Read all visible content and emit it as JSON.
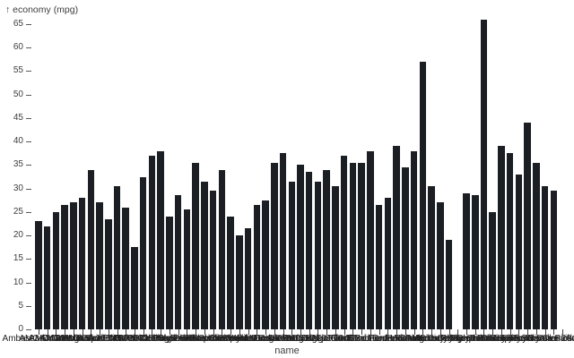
{
  "chart": {
    "y_axis_title": "↑ economy (mpg)",
    "x_axis_title": "name"
  },
  "chart_data": {
    "type": "bar",
    "title": "",
    "ylabel": "economy (mpg)",
    "xlabel": "name",
    "ylim": [
      0,
      66
    ],
    "y_ticks": [
      0,
      5,
      10,
      15,
      20,
      25,
      30,
      35,
      40,
      45,
      50,
      55,
      60,
      65
    ],
    "grid": false,
    "legend": false,
    "bar_color": "#1b1e23",
    "axis_text_color": "#3d3d3d",
    "categories": [
      "AMC Ambassador Brougham",
      "AMC Concord",
      "AMC Gremlin",
      "AMC Hornet",
      "AMC Matador",
      "AMC Pacer",
      "AMC Spirit DL",
      "Audi 100 LS",
      "Audi 4000",
      "Audi 5000",
      "BMW 2002",
      "BMW 320i",
      "Buick Century",
      "Buick Regal",
      "Buick Skylark",
      "Cadillac Seville",
      "Chevrolet Camaro",
      "Chevrolet Caprice",
      "Chevrolet Chevette",
      "Chevrolet Citation",
      "Chevrolet Impala",
      "Chevrolet Malibu",
      "Chevrolet Monte Carlo",
      "Chevrolet Nova",
      "Chevrolet Vega",
      "Chrysler Cordoba",
      "Datsun 200SX",
      "Datsun 210",
      "Datsun 280ZX",
      "Datsun 510",
      "Datsun B210",
      "Dodge Aspen",
      "Dodge Colt",
      "Dodge Omni",
      "Fiat 124B",
      "Fiat 128",
      "Fiat Strada",
      "Ford Fairmont",
      "Ford Fiesta",
      "Ford Granada",
      "Ford LTD",
      "Ford Mustang",
      "Ford Pinto",
      "Honda Accord",
      "Honda Civic",
      "Mazda GLC",
      "Mercury Capri",
      "Mercury Marquis",
      "Oldsmobile Cutlass",
      "Peugeot 504",
      "Plymouth Champ",
      "Plymouth Duster",
      "Plymouth Horizon",
      "Pontiac Firebird",
      "Pontiac Phoenix",
      "Toyota Celica",
      "Toyota Corolla",
      "Toyota Corona",
      "Toyota Cressida",
      "Toyota Pickup",
      "Volvo 264GL"
    ],
    "values": [
      23,
      22,
      25,
      26.5,
      27,
      28,
      34,
      27,
      23.5,
      30.5,
      26,
      17.5,
      32.5,
      37,
      38,
      24,
      28.5,
      25.5,
      35.5,
      31.5,
      29.5,
      34,
      24,
      20,
      21.5,
      26.5,
      27.5,
      35.5,
      37.5,
      31.5,
      35,
      33.5,
      31.5,
      34,
      30.5,
      37,
      35.5,
      35.5,
      38,
      26.5,
      28,
      39,
      34.5,
      38,
      57,
      30.5,
      27,
      19,
      0,
      29,
      28.5,
      66,
      25,
      39,
      37.5,
      33,
      44,
      35.5,
      30.5,
      29.5,
      0
    ]
  }
}
